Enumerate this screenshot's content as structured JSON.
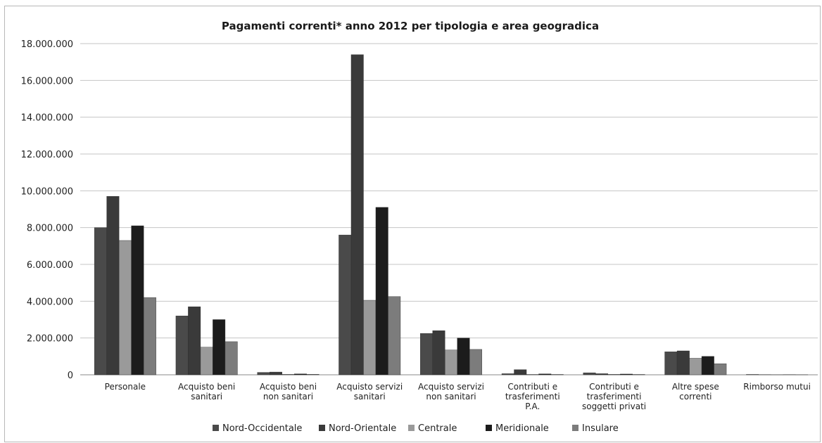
{
  "chart_data": {
    "type": "bar",
    "title": "Pagamenti correnti* anno 2012 per tipologia e area geogradica",
    "categories": [
      [
        "Personale"
      ],
      [
        "Acquisto beni",
        "sanitari"
      ],
      [
        "Acquisto beni",
        "non sanitari"
      ],
      [
        "Acquisto servizi",
        "sanitari"
      ],
      [
        "Acquisto servizi",
        "non sanitari"
      ],
      [
        "Contributi e",
        "trasferimenti",
        "P.A."
      ],
      [
        "Contributi e",
        "trasferimenti",
        "soggetti privati"
      ],
      [
        "Altre spese",
        "correnti"
      ],
      [
        "Rimborso mutui"
      ]
    ],
    "series": [
      {
        "name": "Nord-Occidentale",
        "color": "#4a4a4a",
        "values": [
          8000000,
          3200000,
          130000,
          7600000,
          2250000,
          60000,
          110000,
          1250000,
          20000
        ]
      },
      {
        "name": "Nord-Orientale",
        "color": "#3a3a3a",
        "values": [
          9700000,
          3700000,
          150000,
          17400000,
          2400000,
          280000,
          60000,
          1300000,
          10000
        ]
      },
      {
        "name": "Centrale",
        "color": "#9a9a9a",
        "values": [
          7300000,
          1500000,
          30000,
          4050000,
          1350000,
          20000,
          30000,
          900000,
          5000
        ]
      },
      {
        "name": "Meridionale",
        "color": "#1c1c1c",
        "values": [
          8100000,
          3000000,
          50000,
          9100000,
          2000000,
          50000,
          40000,
          1000000,
          10000
        ]
      },
      {
        "name": "Insulare",
        "color": "#7c7c7c",
        "values": [
          4200000,
          1800000,
          30000,
          4250000,
          1380000,
          20000,
          20000,
          600000,
          5000
        ]
      }
    ],
    "yticks": [
      "0",
      "2.000.000",
      "4.000.000",
      "6.000.000",
      "8.000.000",
      "10.000.000",
      "12.000.000",
      "14.000.000",
      "16.000.000",
      "18.000.000"
    ],
    "ylim": [
      0,
      18000000
    ],
    "grid": true,
    "legend": "bottom"
  }
}
